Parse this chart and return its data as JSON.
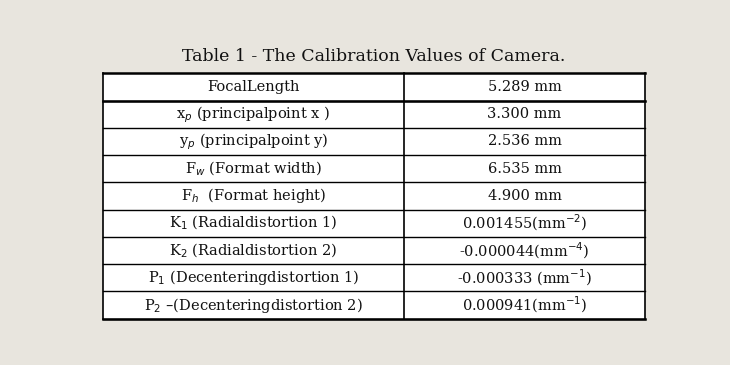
{
  "title": "Table 1 - The Calibration Values of Camera.",
  "title_fontsize": 12.5,
  "rows": [
    [
      "FocalLength",
      "5.289 mm"
    ],
    [
      "x$_p$ (principalpoint x )",
      "3.300 mm"
    ],
    [
      "y$_p$ (principalpoint y)",
      "2.536 mm"
    ],
    [
      "F$_w$ (Format width)",
      "6.535 mm"
    ],
    [
      "F$_h$  (Format height)",
      "4.900 mm"
    ],
    [
      "K$_1$ (Radialdistortion 1)",
      "0.001455(mm$^{-2}$)"
    ],
    [
      "K$_2$ (Radialdistortion 2)",
      "-0.000044(mm$^{-4}$)"
    ],
    [
      "P$_1$ (Decenteringdistortion 1)",
      "-0.000333 (mm$^{-1}$)"
    ],
    [
      "P$_2$ –(Decenteringdistortion 2)",
      "0.000941(mm$^{-1}$)"
    ]
  ],
  "bg_color": "#e8e5de",
  "table_bg": "#ffffff",
  "text_color": "#111111",
  "font_size": 10.5,
  "col_split": 0.555
}
